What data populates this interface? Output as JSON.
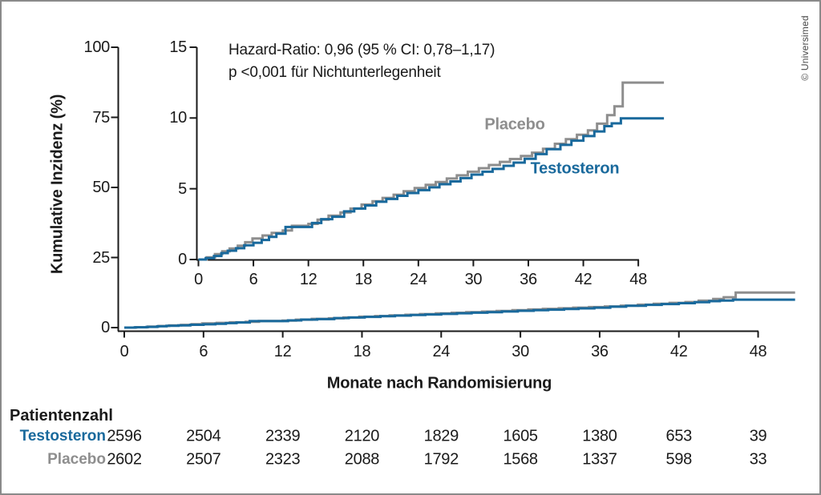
{
  "copyright": "© Universimed",
  "annotation": {
    "line1": "Hazard-Ratio: 0,96 (95 % CI: 0,78–1,17)",
    "line2": "p <0,001 für Nichtunterlegenheit"
  },
  "chart_data": {
    "type": "line",
    "step": true,
    "title": "",
    "xlabel": "Monate nach Randomisierung",
    "ylabel": "Kumulative Inzidenz (%)",
    "main_axis": {
      "x_ticks": [
        0,
        6,
        12,
        18,
        24,
        30,
        36,
        42,
        48
      ],
      "y_ticks": [
        0,
        25,
        50,
        75,
        100
      ],
      "xlim": [
        0,
        50.8
      ],
      "ylim": [
        0,
        100
      ],
      "grid": false
    },
    "inset_axis": {
      "x_ticks": [
        0,
        6,
        12,
        18,
        24,
        30,
        36,
        42,
        48
      ],
      "y_ticks": [
        0,
        5,
        10,
        15
      ],
      "xlim": [
        0,
        50.8
      ],
      "ylim": [
        0,
        15
      ],
      "grid": false
    },
    "series": [
      {
        "name": "Placebo",
        "color": "#8e8e8e",
        "points": [
          [
            0,
            0
          ],
          [
            0.9,
            0.15
          ],
          [
            1.8,
            0.38
          ],
          [
            2.6,
            0.58
          ],
          [
            3.4,
            0.78
          ],
          [
            4.3,
            0.98
          ],
          [
            5.1,
            1.22
          ],
          [
            5.9,
            1.48
          ],
          [
            7,
            1.7
          ],
          [
            8,
            1.88
          ],
          [
            9.2,
            2.05
          ],
          [
            10.2,
            2.38
          ],
          [
            12,
            2.52
          ],
          [
            13,
            2.82
          ],
          [
            14.2,
            3.1
          ],
          [
            15.5,
            3.32
          ],
          [
            16.6,
            3.6
          ],
          [
            17.8,
            3.88
          ],
          [
            19,
            4.12
          ],
          [
            20.1,
            4.35
          ],
          [
            21.3,
            4.58
          ],
          [
            22.4,
            4.82
          ],
          [
            23.6,
            5.05
          ],
          [
            24.8,
            5.28
          ],
          [
            25.9,
            5.48
          ],
          [
            27.1,
            5.72
          ],
          [
            28.2,
            5.95
          ],
          [
            29.4,
            6.2
          ],
          [
            30.6,
            6.45
          ],
          [
            31.7,
            6.68
          ],
          [
            32.9,
            6.9
          ],
          [
            34,
            7.1
          ],
          [
            35.2,
            7.32
          ],
          [
            36.4,
            7.55
          ],
          [
            37.6,
            7.82
          ],
          [
            38.9,
            8.18
          ],
          [
            40.1,
            8.5
          ],
          [
            41.3,
            8.82
          ],
          [
            42.5,
            9.12
          ],
          [
            43.5,
            9.6
          ],
          [
            44.6,
            10.2
          ],
          [
            45.4,
            10.82
          ],
          [
            46.3,
            12.5
          ],
          [
            50.8,
            12.5
          ]
        ]
      },
      {
        "name": "Testosteron",
        "color": "#19699c",
        "points": [
          [
            0,
            0
          ],
          [
            0.8,
            0.1
          ],
          [
            1.7,
            0.25
          ],
          [
            2.5,
            0.45
          ],
          [
            3.2,
            0.62
          ],
          [
            4.1,
            0.8
          ],
          [
            5,
            1
          ],
          [
            6,
            1.18
          ],
          [
            6.9,
            1.38
          ],
          [
            7.7,
            1.6
          ],
          [
            8.5,
            1.82
          ],
          [
            9.5,
            2.3
          ],
          [
            12.4,
            2.58
          ],
          [
            13.4,
            2.85
          ],
          [
            14.6,
            3.02
          ],
          [
            15.9,
            3.4
          ],
          [
            17,
            3.6
          ],
          [
            18.2,
            3.82
          ],
          [
            19.4,
            4.08
          ],
          [
            20.5,
            4.28
          ],
          [
            21.7,
            4.5
          ],
          [
            22.8,
            4.7
          ],
          [
            24,
            4.9
          ],
          [
            25.2,
            5.1
          ],
          [
            26.3,
            5.32
          ],
          [
            27.5,
            5.52
          ],
          [
            28.6,
            5.75
          ],
          [
            29.8,
            6
          ],
          [
            31,
            6.2
          ],
          [
            32.1,
            6.4
          ],
          [
            33.3,
            6.62
          ],
          [
            34.4,
            6.85
          ],
          [
            35.6,
            7.12
          ],
          [
            36.8,
            7.45
          ],
          [
            38,
            7.8
          ],
          [
            39.5,
            8.1
          ],
          [
            40.7,
            8.4
          ],
          [
            42,
            8.72
          ],
          [
            43.2,
            9.05
          ],
          [
            44.3,
            9.42
          ],
          [
            45.1,
            9.62
          ],
          [
            46.1,
            9.98
          ],
          [
            50.8,
            9.98
          ]
        ]
      }
    ]
  },
  "table": {
    "header": "Patientenzahl",
    "months": [
      0,
      6,
      12,
      18,
      24,
      30,
      36,
      42,
      48
    ],
    "rows": [
      {
        "label": "Testosteron",
        "color": "#19699c",
        "values": [
          2596,
          2504,
          2339,
          2120,
          1829,
          1605,
          1380,
          653,
          39
        ]
      },
      {
        "label": "Placebo",
        "color": "#8e8e8e",
        "values": [
          2602,
          2507,
          2323,
          2088,
          1792,
          1568,
          1337,
          598,
          33
        ]
      }
    ]
  },
  "colors": {
    "testosteron": "#19699c",
    "placebo": "#8e8e8e",
    "axis": "#1a1a1a"
  }
}
